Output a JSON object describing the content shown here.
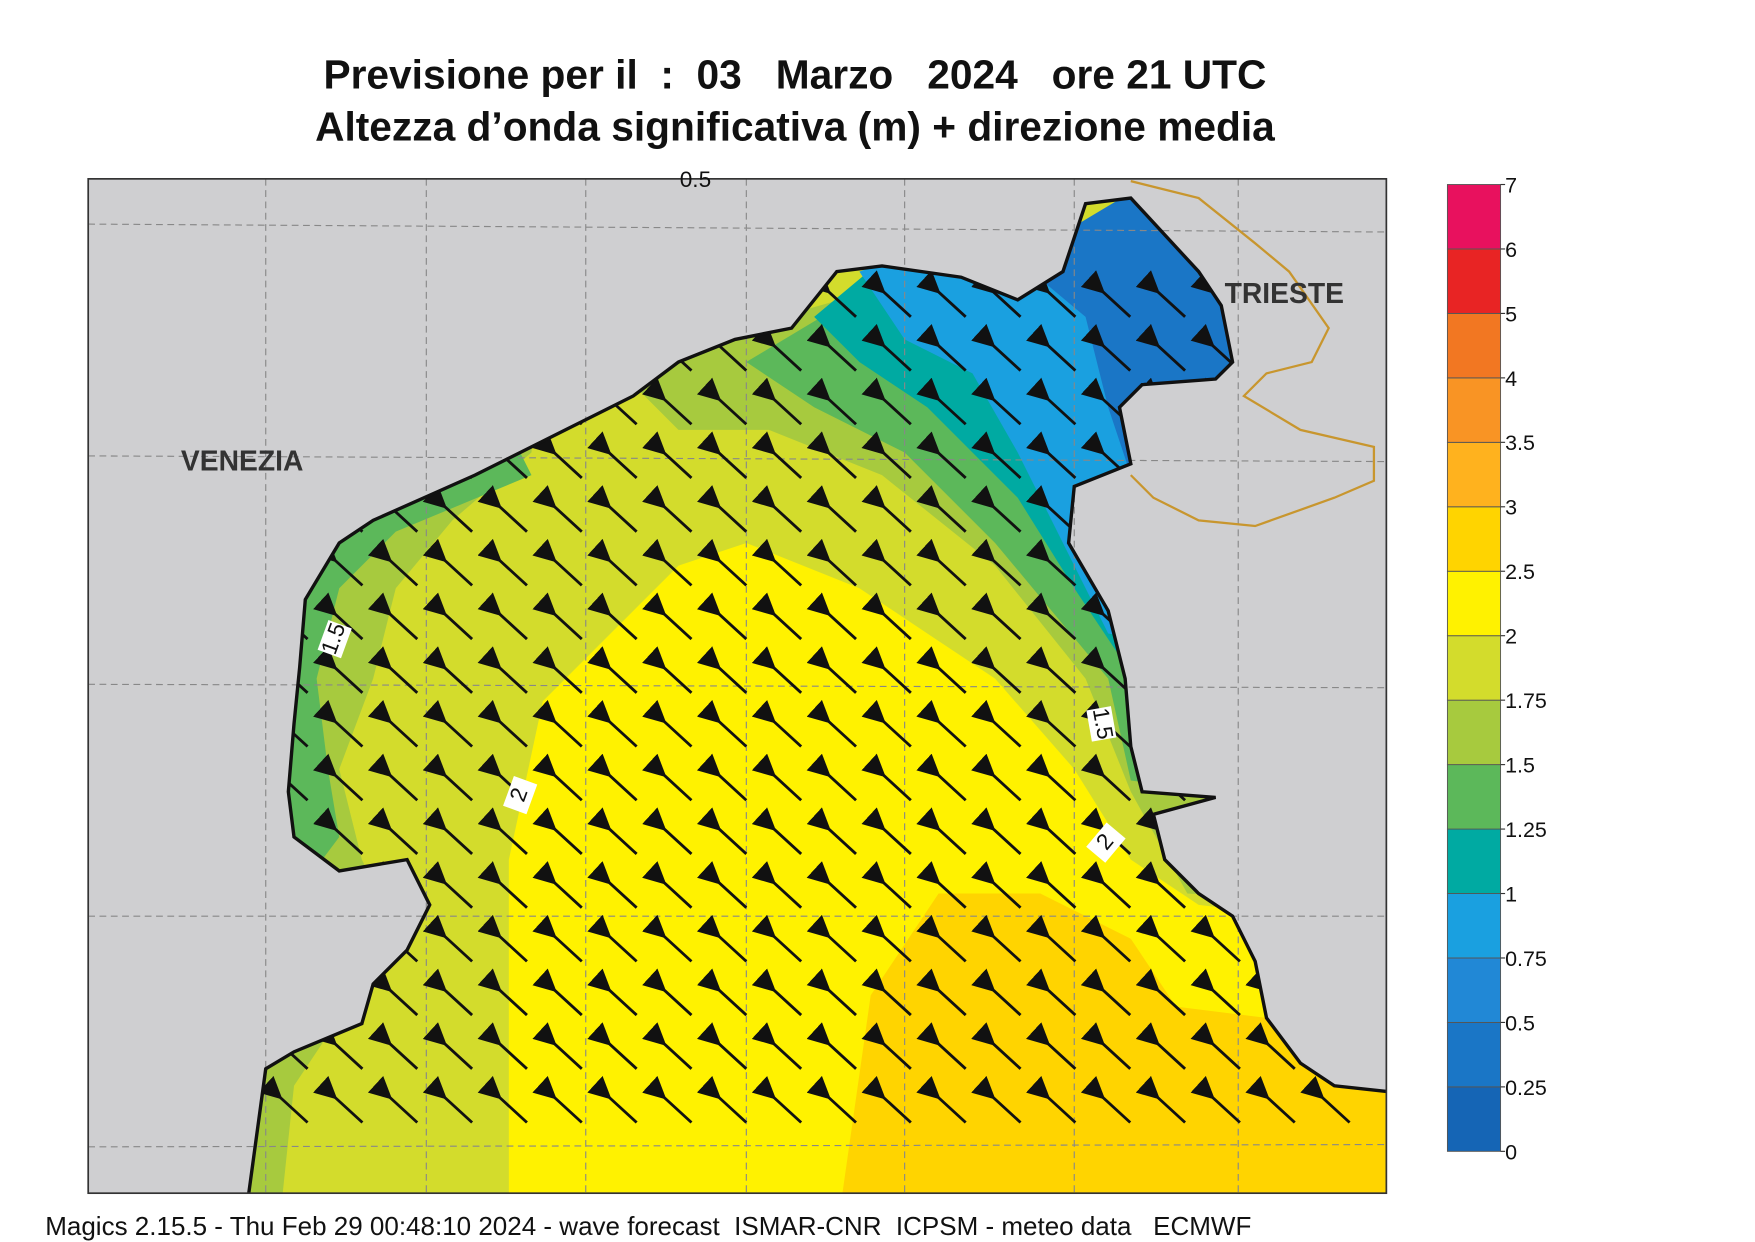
{
  "title": [
    "Previsione per il  :  03   Marzo   2024   ore 21 UTC",
    "Altezza d’onda significativa (m) + direzione media"
  ],
  "places": [
    "VENEZIA",
    "TRIESTE"
  ],
  "contour_labels": [
    "1.5",
    "1.5",
    "2",
    "2",
    "0.5"
  ],
  "colorbar": {
    "levels": [
      0,
      0.25,
      0.5,
      0.75,
      1,
      1.25,
      1.5,
      1.75,
      2,
      2.5,
      3,
      3.5,
      4,
      5,
      6,
      7
    ],
    "colors": [
      "#1565b5",
      "#1a76c6",
      "#2188d6",
      "#1aa0e0",
      "#00aaa2",
      "#5cb85a",
      "#a7ca3e",
      "#d3dc2c",
      "#fff200",
      "#ffd400",
      "#ffb21e",
      "#f99424",
      "#f27722",
      "#e82424",
      "#e8115e"
    ]
  },
  "footer": "Magics 2.15.5 - Thu Feb 29 00:48:10 2024 - wave forecast  ISMAR-CNR  ICPSM - meteo data   ECMWF"
}
